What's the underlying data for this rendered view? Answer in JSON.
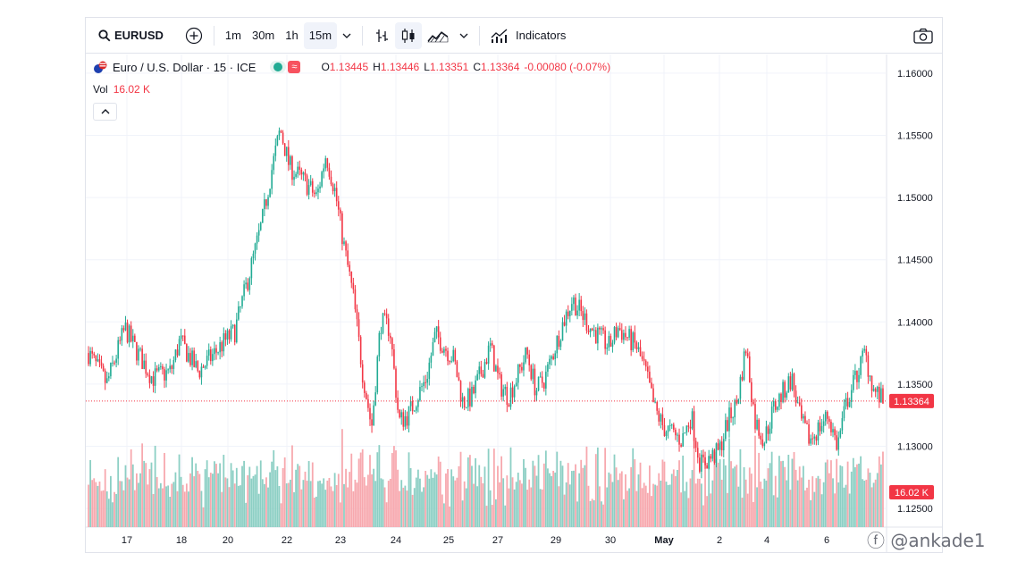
{
  "toolbar": {
    "symbol": "EURUSD",
    "intervals": [
      "1m",
      "30m",
      "1h",
      "15m"
    ],
    "active_interval": "15m",
    "indicators_label": "Indicators"
  },
  "legend": {
    "title": "Euro / U.S. Dollar · 15 · ICE",
    "approx_badge": "≈",
    "ohlc": [
      {
        "k": "O",
        "v": "1.13445"
      },
      {
        "k": "H",
        "v": "1.13446"
      },
      {
        "k": "L",
        "v": "1.13351"
      },
      {
        "k": "C",
        "v": "1.13364"
      },
      {
        "k": "",
        "v": "-0.00080 (-0.07%)"
      }
    ],
    "vol_label": "Vol",
    "vol_value": "16.02 K"
  },
  "colors": {
    "up": "#22ab94",
    "down": "#f23645",
    "up_vol": "#8ccfc4",
    "down_vol": "#f7a8ae",
    "grid": "#f0f3fa",
    "price_line": "#f23645"
  },
  "chart_data": {
    "type": "candlestick",
    "symbol": "EURUSD",
    "interval": "15",
    "y_ticks": [
      "1.16000",
      "1.15500",
      "1.15000",
      "1.14500",
      "1.14000",
      "1.13500",
      "1.13000",
      "1.12500"
    ],
    "ylim": [
      1.1235,
      1.1615
    ],
    "x_ticks": [
      "17",
      "18",
      "20",
      "22",
      "23",
      "24",
      "25",
      "27",
      "29",
      "30",
      "May",
      "2",
      "4",
      "6"
    ],
    "last_price_label": "1.13364",
    "last_price": 1.13364,
    "volume_label": "16.02 K",
    "close_path": [
      {
        "t": 0,
        "c": 1.1375
      },
      {
        "t": 2,
        "c": 1.135
      },
      {
        "t": 4,
        "c": 1.1395
      },
      {
        "t": 5,
        "c": 1.138
      },
      {
        "t": 7,
        "c": 1.1355
      },
      {
        "t": 9,
        "c": 1.136
      },
      {
        "t": 10,
        "c": 1.1385
      },
      {
        "t": 12,
        "c": 1.136
      },
      {
        "t": 13,
        "c": 1.1368
      },
      {
        "t": 15,
        "c": 1.1385
      },
      {
        "t": 16,
        "c": 1.1392
      },
      {
        "t": 18,
        "c": 1.145
      },
      {
        "t": 19,
        "c": 1.148
      },
      {
        "t": 20,
        "c": 1.152
      },
      {
        "t": 21,
        "c": 1.1555
      },
      {
        "t": 22,
        "c": 1.1525
      },
      {
        "t": 24,
        "c": 1.151
      },
      {
        "t": 25,
        "c": 1.15
      },
      {
        "t": 26,
        "c": 1.1535
      },
      {
        "t": 27,
        "c": 1.1505
      },
      {
        "t": 28,
        "c": 1.146
      },
      {
        "t": 29,
        "c": 1.142
      },
      {
        "t": 30,
        "c": 1.136
      },
      {
        "t": 31,
        "c": 1.1315
      },
      {
        "t": 32,
        "c": 1.14
      },
      {
        "t": 33,
        "c": 1.1395
      },
      {
        "t": 34,
        "c": 1.132
      },
      {
        "t": 35,
        "c": 1.1325
      },
      {
        "t": 37,
        "c": 1.1355
      },
      {
        "t": 38,
        "c": 1.139
      },
      {
        "t": 40,
        "c": 1.137
      },
      {
        "t": 41,
        "c": 1.1335
      },
      {
        "t": 42,
        "c": 1.134
      },
      {
        "t": 44,
        "c": 1.138
      },
      {
        "t": 45,
        "c": 1.135
      },
      {
        "t": 46,
        "c": 1.134
      },
      {
        "t": 48,
        "c": 1.1375
      },
      {
        "t": 49,
        "c": 1.1345
      },
      {
        "t": 50,
        "c": 1.1355
      },
      {
        "t": 52,
        "c": 1.14
      },
      {
        "t": 53,
        "c": 1.1418
      },
      {
        "t": 55,
        "c": 1.1395
      },
      {
        "t": 57,
        "c": 1.138
      },
      {
        "t": 58,
        "c": 1.1395
      },
      {
        "t": 60,
        "c": 1.138
      },
      {
        "t": 61,
        "c": 1.136
      },
      {
        "t": 62,
        "c": 1.133
      },
      {
        "t": 63,
        "c": 1.1315
      },
      {
        "t": 65,
        "c": 1.1305
      },
      {
        "t": 66,
        "c": 1.1325
      },
      {
        "t": 67,
        "c": 1.1285
      },
      {
        "t": 69,
        "c": 1.1295
      },
      {
        "t": 70,
        "c": 1.132
      },
      {
        "t": 71,
        "c": 1.1335
      },
      {
        "t": 72,
        "c": 1.138
      },
      {
        "t": 73,
        "c": 1.132
      },
      {
        "t": 74,
        "c": 1.1305
      },
      {
        "t": 75,
        "c": 1.133
      },
      {
        "t": 77,
        "c": 1.1355
      },
      {
        "t": 78,
        "c": 1.132
      },
      {
        "t": 79,
        "c": 1.1305
      },
      {
        "t": 81,
        "c": 1.1325
      },
      {
        "t": 82,
        "c": 1.13
      },
      {
        "t": 83,
        "c": 1.1335
      },
      {
        "t": 85,
        "c": 1.1375
      },
      {
        "t": 86,
        "c": 1.1345
      },
      {
        "t": 87,
        "c": 1.1336
      }
    ]
  },
  "watermark": "ⓕ @ankade1"
}
